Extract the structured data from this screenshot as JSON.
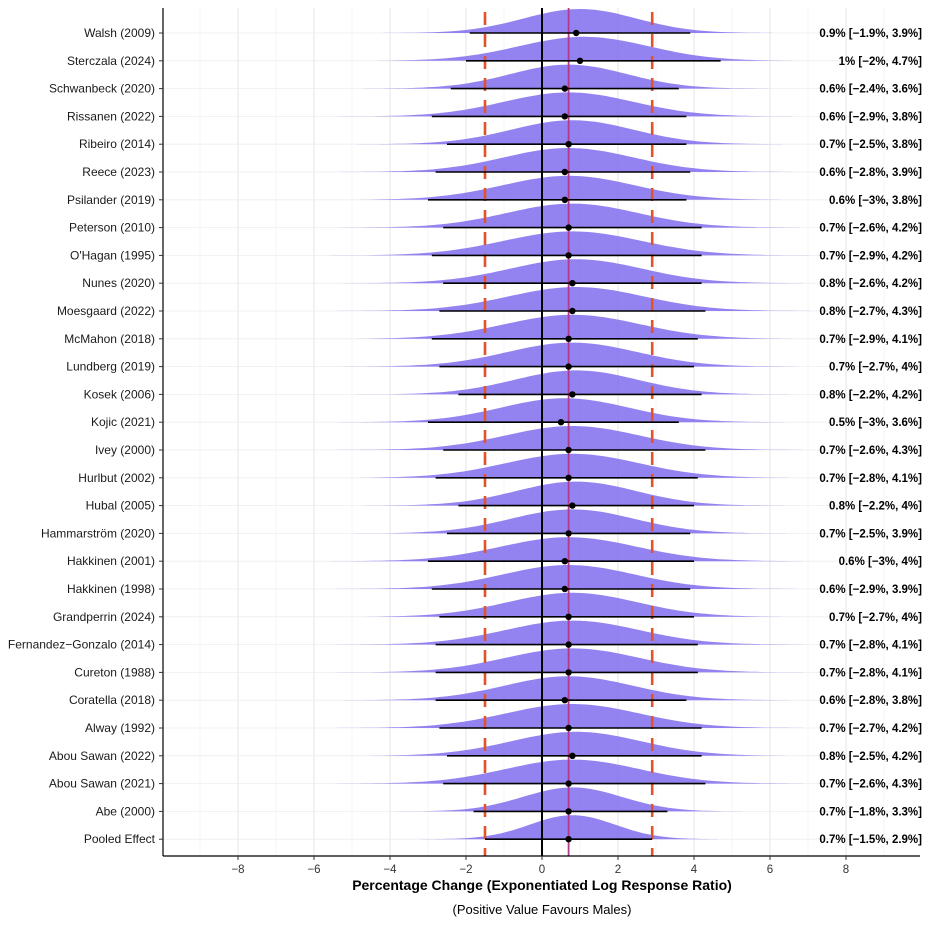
{
  "chart_data": {
    "type": "forest-density",
    "xlabel": "Percentage Change (Exponentiated Log Response Ratio)",
    "xsublabel": "(Positive Value Favours Males)",
    "xlim": [
      -10,
      10
    ],
    "xticks": [
      -8,
      -6,
      -4,
      -2,
      0,
      2,
      4,
      6,
      8
    ],
    "reference_line": 0,
    "pooled_line": 0.7,
    "prediction_interval": [
      -1.5,
      2.9
    ],
    "colors": {
      "density": "#7B68EE",
      "pooled_line": "#B23A8C",
      "pi_line": "#E2532A",
      "point": "#000000"
    },
    "studies": [
      {
        "name": "Walsh (2009)",
        "est": 0.9,
        "lo": -1.9,
        "hi": 3.9,
        "label": "0.9% [−1.9%, 3.9%]"
      },
      {
        "name": "Sterczala (2024)",
        "est": 1.0,
        "lo": -2.0,
        "hi": 4.7,
        "label": "1% [−2%, 4.7%]"
      },
      {
        "name": "Schwanbeck (2020)",
        "est": 0.6,
        "lo": -2.4,
        "hi": 3.6,
        "label": "0.6% [−2.4%, 3.6%]"
      },
      {
        "name": "Rissanen (2022)",
        "est": 0.6,
        "lo": -2.9,
        "hi": 3.8,
        "label": "0.6% [−2.9%, 3.8%]"
      },
      {
        "name": "Ribeiro (2014)",
        "est": 0.7,
        "lo": -2.5,
        "hi": 3.8,
        "label": "0.7% [−2.5%, 3.8%]"
      },
      {
        "name": "Reece (2023)",
        "est": 0.6,
        "lo": -2.8,
        "hi": 3.9,
        "label": "0.6% [−2.8%, 3.9%]"
      },
      {
        "name": "Psilander (2019)",
        "est": 0.6,
        "lo": -3.0,
        "hi": 3.8,
        "label": "0.6% [−3%, 3.8%]"
      },
      {
        "name": "Peterson (2010)",
        "est": 0.7,
        "lo": -2.6,
        "hi": 4.2,
        "label": "0.7% [−2.6%, 4.2%]"
      },
      {
        "name": "O'Hagan (1995)",
        "est": 0.7,
        "lo": -2.9,
        "hi": 4.2,
        "label": "0.7% [−2.9%, 4.2%]"
      },
      {
        "name": "Nunes (2020)",
        "est": 0.8,
        "lo": -2.6,
        "hi": 4.2,
        "label": "0.8% [−2.6%, 4.2%]"
      },
      {
        "name": "Moesgaard (2022)",
        "est": 0.8,
        "lo": -2.7,
        "hi": 4.3,
        "label": "0.8% [−2.7%, 4.3%]"
      },
      {
        "name": "McMahon (2018)",
        "est": 0.7,
        "lo": -2.9,
        "hi": 4.1,
        "label": "0.7% [−2.9%, 4.1%]"
      },
      {
        "name": "Lundberg (2019)",
        "est": 0.7,
        "lo": -2.7,
        "hi": 4.0,
        "label": "0.7% [−2.7%, 4%]"
      },
      {
        "name": "Kosek (2006)",
        "est": 0.8,
        "lo": -2.2,
        "hi": 4.2,
        "label": "0.8% [−2.2%, 4.2%]"
      },
      {
        "name": "Kojic (2021)",
        "est": 0.5,
        "lo": -3.0,
        "hi": 3.6,
        "label": "0.5% [−3%, 3.6%]"
      },
      {
        "name": "Ivey (2000)",
        "est": 0.7,
        "lo": -2.6,
        "hi": 4.3,
        "label": "0.7% [−2.6%, 4.3%]"
      },
      {
        "name": "Hurlbut (2002)",
        "est": 0.7,
        "lo": -2.8,
        "hi": 4.1,
        "label": "0.7% [−2.8%, 4.1%]"
      },
      {
        "name": "Hubal (2005)",
        "est": 0.8,
        "lo": -2.2,
        "hi": 4.0,
        "label": "0.8% [−2.2%, 4%]"
      },
      {
        "name": "Hammarström (2020)",
        "est": 0.7,
        "lo": -2.5,
        "hi": 3.9,
        "label": "0.7% [−2.5%, 3.9%]"
      },
      {
        "name": "Hakkinen (2001)",
        "est": 0.6,
        "lo": -3.0,
        "hi": 4.0,
        "label": "0.6% [−3%, 4%]"
      },
      {
        "name": "Hakkinen (1998)",
        "est": 0.6,
        "lo": -2.9,
        "hi": 3.9,
        "label": "0.6% [−2.9%, 3.9%]"
      },
      {
        "name": "Grandperrin (2024)",
        "est": 0.7,
        "lo": -2.7,
        "hi": 4.0,
        "label": "0.7% [−2.7%, 4%]"
      },
      {
        "name": "Fernandez−Gonzalo (2014)",
        "est": 0.7,
        "lo": -2.8,
        "hi": 4.1,
        "label": "0.7% [−2.8%, 4.1%]"
      },
      {
        "name": "Cureton (1988)",
        "est": 0.7,
        "lo": -2.8,
        "hi": 4.1,
        "label": "0.7% [−2.8%, 4.1%]"
      },
      {
        "name": "Coratella (2018)",
        "est": 0.6,
        "lo": -2.8,
        "hi": 3.8,
        "label": "0.6% [−2.8%, 3.8%]"
      },
      {
        "name": "Alway (1992)",
        "est": 0.7,
        "lo": -2.7,
        "hi": 4.2,
        "label": "0.7% [−2.7%, 4.2%]"
      },
      {
        "name": "Abou Sawan (2022)",
        "est": 0.8,
        "lo": -2.5,
        "hi": 4.2,
        "label": "0.8% [−2.5%, 4.2%]"
      },
      {
        "name": "Abou Sawan (2021)",
        "est": 0.7,
        "lo": -2.6,
        "hi": 4.3,
        "label": "0.7% [−2.6%, 4.3%]"
      },
      {
        "name": "Abe (2000)",
        "est": 0.7,
        "lo": -1.8,
        "hi": 3.3,
        "label": "0.7% [−1.8%, 3.3%]"
      },
      {
        "name": "Pooled Effect",
        "est": 0.7,
        "lo": -1.5,
        "hi": 2.9,
        "label": "0.7% [−1.5%, 2.9%]"
      }
    ]
  }
}
